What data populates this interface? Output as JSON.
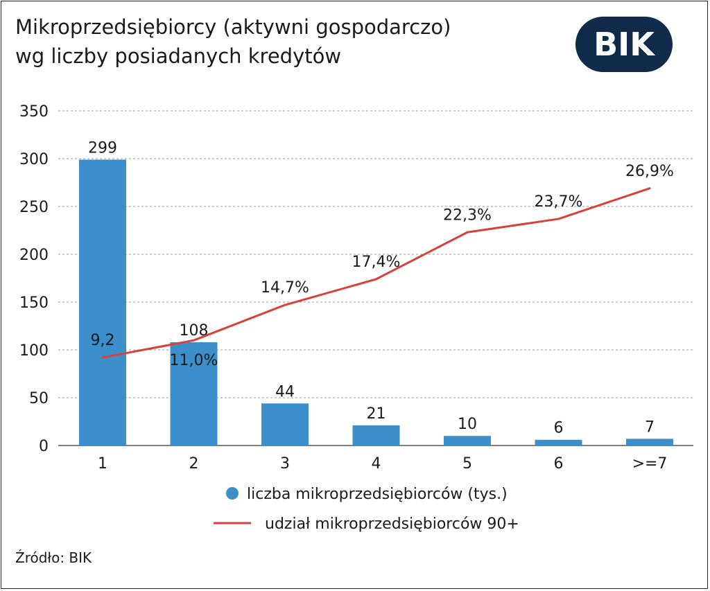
{
  "header": {
    "title_line1": "Mikroprzedsiębiorcy (aktywni gospodarczo)",
    "title_line2": "wg liczby posiadanych kredytów",
    "logo_text": "BIK"
  },
  "footer": {
    "source": "Źródło: BIK"
  },
  "colors": {
    "bar": "#3d8fcb",
    "line": "#d9403b",
    "logo_bg": "#102a4a",
    "text": "#1a1a1a",
    "grid": "#9a9a9a"
  },
  "chart_data": {
    "type": "bar",
    "categories": [
      "1",
      "2",
      "3",
      "4",
      "5",
      "6",
      ">=7"
    ],
    "ylim": [
      0,
      350
    ],
    "yticks": [
      "0",
      "50",
      "100",
      "150",
      "200",
      "250",
      "300",
      "350"
    ],
    "grid": true,
    "legend_position": "bottom",
    "series": [
      {
        "name": "liczba mikroprzedsiębiorców (tys.)",
        "type": "bar",
        "values": [
          299,
          108,
          44,
          21,
          10,
          6,
          7
        ],
        "labels": [
          "299",
          "108",
          "44",
          "21",
          "10",
          "6",
          "7"
        ]
      },
      {
        "name": "udział mikroprzedsiębiorców 90+",
        "type": "line",
        "values": [
          9.2,
          11.0,
          14.7,
          17.4,
          22.3,
          23.7,
          26.9
        ],
        "labels": [
          "9,2",
          "11,0%",
          "14,7%",
          "17,4%",
          "22,3%",
          "23,7%",
          "26,9%"
        ]
      }
    ]
  }
}
